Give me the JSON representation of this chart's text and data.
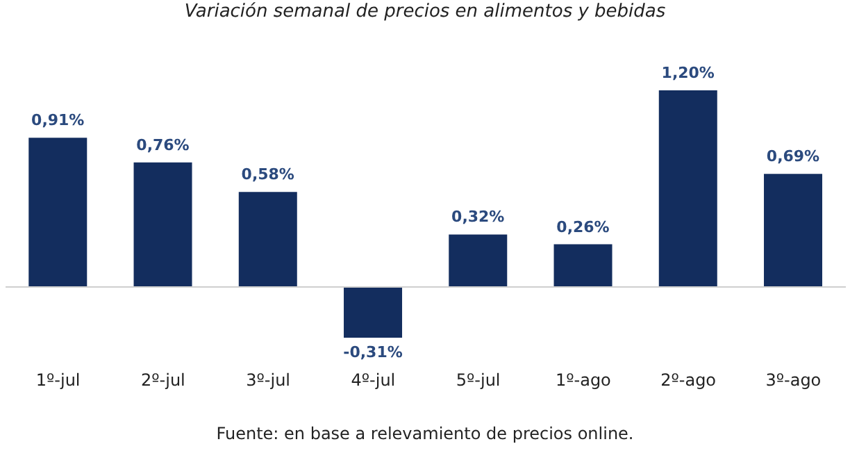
{
  "chart_data": {
    "type": "bar",
    "title": "Variación semanal de precios en alimentos y bebidas",
    "categories": [
      "1º-jul",
      "2º-jul",
      "3º-jul",
      "4º-jul",
      "5º-jul",
      "1º-ago",
      "2º-ago",
      "3º-ago"
    ],
    "values": [
      0.91,
      0.76,
      0.58,
      -0.31,
      0.32,
      0.26,
      1.2,
      0.69
    ],
    "value_labels": [
      "0,91%",
      "0,76%",
      "0,58%",
      "-0,31%",
      "0,32%",
      "0,26%",
      "1,20%",
      "0,69%"
    ],
    "color": "#132d5e",
    "annotations": [
      "Fuente: en base a relevamiento de precios online."
    ]
  }
}
